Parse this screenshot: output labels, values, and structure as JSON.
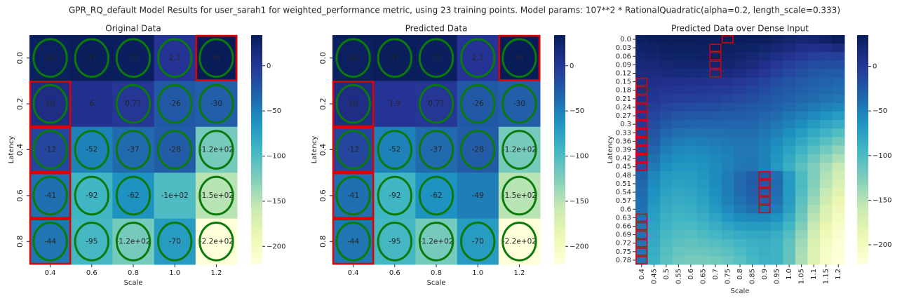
{
  "suptitle": "GPR_RQ_default Model Results for user_sarah1 for weighted_performance metric, using 23 training points. Model params: 107**2 * RationalQuadratic(alpha=0.2, length_scale=0.333)",
  "chart_data": [
    {
      "type": "heatmap",
      "title": "Original Data",
      "x_label": "Scale",
      "y_label": "Latency",
      "colormap": "YlGnBu",
      "mark_row_max": true,
      "x_categories": [
        "0.4",
        "0.6",
        "0.8",
        "1.0",
        "1.2"
      ],
      "y_categories": [
        "0.0",
        "0.2",
        "0.4",
        "0.6",
        "0.8"
      ],
      "values": [
        [
          30,
          33,
          31,
          2.1,
          34
        ],
        [
          10,
          6,
          0.77,
          -26,
          -30
        ],
        [
          -12,
          -52,
          -37,
          -28,
          -120
        ],
        [
          -41,
          -92,
          -62,
          -100,
          -150
        ],
        [
          -44,
          -95,
          -120,
          -70,
          -220
        ]
      ],
      "value_labels": [
        [
          "30",
          "33",
          "31",
          "2.1",
          "34"
        ],
        [
          "10",
          "6",
          "0.77",
          "-26",
          "-30"
        ],
        [
          "-12",
          "-52",
          "-37",
          "-28",
          "-1.2e+02"
        ],
        [
          "-41",
          "-92",
          "-62",
          "-1e+02",
          "-1.5e+02"
        ],
        [
          "-44",
          "-95",
          "-1.2e+02",
          "-70",
          "-2.2e+02"
        ]
      ],
      "circled": [
        [
          true,
          true,
          true,
          true,
          true
        ],
        [
          true,
          false,
          true,
          true,
          true
        ],
        [
          true,
          true,
          true,
          true,
          true
        ],
        [
          true,
          true,
          true,
          false,
          true
        ],
        [
          true,
          true,
          true,
          true,
          true
        ]
      ],
      "clim": [
        -220,
        34
      ],
      "cticks": [
        0,
        {
          "value": -50,
          "label": "−50"
        },
        {
          "value": -100,
          "label": "−100"
        },
        {
          "value": -150,
          "label": "−150"
        },
        {
          "value": -200,
          "label": "−200"
        }
      ]
    },
    {
      "type": "heatmap",
      "title": "Predicted Data",
      "x_label": "Scale",
      "y_label": "Latency",
      "colormap": "YlGnBu",
      "mark_row_max": true,
      "x_categories": [
        "0.4",
        "0.6",
        "0.8",
        "1.0",
        "1.2"
      ],
      "y_categories": [
        "0.0",
        "0.2",
        "0.4",
        "0.6",
        "0.8"
      ],
      "values": [
        [
          30,
          33,
          31,
          2.1,
          34
        ],
        [
          10,
          1.9,
          0.77,
          -26,
          -30
        ],
        [
          -12,
          -52,
          -37,
          -28,
          -120
        ],
        [
          -41,
          -92,
          -62,
          -49,
          -150
        ],
        [
          -44,
          -95,
          -120,
          -70,
          -220
        ]
      ],
      "value_labels": [
        [
          "30",
          "33",
          "31",
          "2.1",
          "34"
        ],
        [
          "10",
          "1.9",
          "0.77",
          "-26",
          "-30"
        ],
        [
          "-12",
          "-52",
          "-37",
          "-28",
          "-1.2e+02"
        ],
        [
          "-41",
          "-92",
          "-62",
          "-49",
          "-1.5e+02"
        ],
        [
          "-44",
          "-95",
          "-1.2e+02",
          "-70",
          "-2.2e+02"
        ]
      ],
      "circled": [
        [
          true,
          true,
          true,
          true,
          true
        ],
        [
          true,
          false,
          true,
          true,
          true
        ],
        [
          true,
          true,
          true,
          true,
          true
        ],
        [
          true,
          true,
          true,
          false,
          true
        ],
        [
          true,
          true,
          true,
          true,
          true
        ]
      ],
      "clim": [
        -220,
        34
      ],
      "cticks": [
        0,
        {
          "value": -50,
          "label": "−50"
        },
        {
          "value": -100,
          "label": "−100"
        },
        {
          "value": -150,
          "label": "−150"
        },
        {
          "value": -200,
          "label": "−200"
        }
      ]
    },
    {
      "type": "heatmap",
      "title": "Predicted Data over Dense Input",
      "x_label": "Scale",
      "y_label": "Latency",
      "colormap": "YlGnBu",
      "mark_row_max": true,
      "x_categories": [
        "0.4",
        "0.45",
        "0.5",
        "0.55",
        "0.6",
        "0.65",
        "0.7",
        "0.75",
        "0.8",
        "0.85",
        "0.9",
        "0.95",
        "1.0",
        "1.05",
        "1.1",
        "1.15",
        "1.2"
      ],
      "y_categories": [
        "0.0",
        "0.03",
        "0.06",
        "0.09",
        "0.12",
        "0.15",
        "0.18",
        "0.21",
        "0.24",
        "0.27",
        "0.3",
        "0.33",
        "0.36",
        "0.39",
        "0.42",
        "0.45",
        "0.48",
        "0.51",
        "0.54",
        "0.57",
        "0.6",
        "0.63",
        "0.66",
        "0.69",
        "0.72",
        "0.75",
        "0.78"
      ],
      "values": [
        [
          30,
          32,
          33,
          33,
          33,
          32,
          32,
          35,
          34,
          32,
          31,
          28,
          24,
          20,
          22,
          28,
          33
        ],
        [
          26,
          28,
          30,
          30,
          30,
          30,
          32,
          31,
          29,
          27,
          24,
          20,
          15,
          10,
          8,
          10,
          14
        ],
        [
          22,
          24,
          26,
          27,
          27,
          28,
          29,
          27,
          24,
          20,
          16,
          10,
          4,
          -2,
          -6,
          -8,
          -6
        ],
        [
          18,
          19,
          21,
          22,
          22,
          23,
          24,
          22,
          19,
          14,
          8,
          1,
          -6,
          -12,
          -16,
          -18,
          -18
        ],
        [
          14,
          14,
          15,
          16,
          16,
          16,
          17,
          15,
          12,
          7,
          1,
          -6,
          -13,
          -19,
          -23,
          -26,
          -27
        ],
        [
          12,
          10,
          8,
          8,
          7,
          7,
          6,
          4,
          1,
          -3,
          -9,
          -15,
          -21,
          -26,
          -30,
          -32,
          -34
        ],
        [
          10,
          6,
          3,
          2,
          1,
          0,
          -1,
          -3,
          -6,
          -10,
          -15,
          -21,
          -26,
          -30,
          -33,
          -36,
          -38
        ],
        [
          8,
          2,
          -3,
          -5,
          -6,
          -7,
          -8,
          -10,
          -13,
          -17,
          -21,
          -26,
          -31,
          -35,
          -38,
          -42,
          -45
        ],
        [
          5,
          -4,
          -10,
          -13,
          -15,
          -16,
          -17,
          -19,
          -21,
          -24,
          -28,
          -32,
          -37,
          -41,
          -46,
          -51,
          -56
        ],
        [
          2,
          -10,
          -18,
          -22,
          -24,
          -25,
          -26,
          -27,
          -28,
          -30,
          -34,
          -38,
          -44,
          -50,
          -57,
          -64,
          -70
        ],
        [
          -1,
          -16,
          -26,
          -31,
          -33,
          -34,
          -34,
          -34,
          -34,
          -35,
          -39,
          -45,
          -52,
          -60,
          -69,
          -78,
          -86
        ],
        [
          -4,
          -22,
          -34,
          -40,
          -42,
          -42,
          -41,
          -40,
          -39,
          -39,
          -44,
          -51,
          -60,
          -70,
          -81,
          -92,
          -102
        ],
        [
          -7,
          -28,
          -42,
          -48,
          -50,
          -49,
          -47,
          -45,
          -43,
          -43,
          -48,
          -57,
          -68,
          -80,
          -93,
          -106,
          -118
        ],
        [
          -9,
          -34,
          -49,
          -55,
          -57,
          -55,
          -52,
          -49,
          -45,
          -45,
          -51,
          -62,
          -75,
          -90,
          -105,
          -120,
          -133
        ],
        [
          -12,
          -40,
          -55,
          -61,
          -62,
          -60,
          -56,
          -51,
          -46,
          -45,
          -52,
          -66,
          -82,
          -99,
          -116,
          -132,
          -146
        ],
        [
          -18,
          -46,
          -61,
          -67,
          -67,
          -64,
          -58,
          -52,
          -45,
          -43,
          -52,
          -68,
          -87,
          -107,
          -126,
          -143,
          -158
        ],
        [
          -30,
          -55,
          -68,
          -72,
          -71,
          -66,
          -58,
          -48,
          -38,
          -30,
          -24,
          -40,
          -70,
          -100,
          -126,
          -148,
          -166
        ],
        [
          -35,
          -58,
          -72,
          -76,
          -74,
          -68,
          -59,
          -48,
          -37,
          -29,
          -25,
          -38,
          -68,
          -100,
          -128,
          -152,
          -172
        ],
        [
          -38,
          -62,
          -76,
          -80,
          -78,
          -71,
          -61,
          -49,
          -38,
          -30,
          -27,
          -39,
          -68,
          -102,
          -132,
          -158,
          -180
        ],
        [
          -40,
          -66,
          -80,
          -84,
          -82,
          -75,
          -64,
          -52,
          -41,
          -33,
          -30,
          -42,
          -70,
          -106,
          -138,
          -165,
          -188
        ],
        [
          -41,
          -70,
          -84,
          -88,
          -86,
          -79,
          -68,
          -57,
          -47,
          -40,
          -38,
          -49,
          -74,
          -112,
          -146,
          -174,
          -196
        ],
        [
          -42,
          -74,
          -88,
          -93,
          -92,
          -86,
          -77,
          -67,
          -59,
          -55,
          -55,
          -62,
          -84,
          -118,
          -152,
          -180,
          -202
        ],
        [
          -43,
          -77,
          -92,
          -98,
          -98,
          -93,
          -86,
          -78,
          -72,
          -69,
          -69,
          -75,
          -94,
          -126,
          -160,
          -188,
          -208
        ],
        [
          -43,
          -80,
          -96,
          -103,
          -104,
          -100,
          -95,
          -89,
          -84,
          -81,
          -80,
          -86,
          -104,
          -134,
          -168,
          -196,
          -214
        ],
        [
          -44,
          -83,
          -100,
          -108,
          -110,
          -108,
          -104,
          -99,
          -94,
          -89,
          -86,
          -91,
          -110,
          -140,
          -174,
          -202,
          -218
        ],
        [
          -44,
          -86,
          -104,
          -113,
          -116,
          -115,
          -112,
          -107,
          -100,
          -93,
          -88,
          -92,
          -112,
          -144,
          -178,
          -206,
          -220
        ],
        [
          -44,
          -89,
          -108,
          -118,
          -122,
          -122,
          -120,
          -114,
          -106,
          -96,
          -90,
          -92,
          -112,
          -146,
          -180,
          -208,
          -222
        ]
      ],
      "clim": [
        -222,
        35
      ],
      "cticks": [
        0,
        {
          "value": -50,
          "label": "−50"
        },
        {
          "value": -100,
          "label": "−100"
        },
        {
          "value": -150,
          "label": "−150"
        },
        {
          "value": -200,
          "label": "−200"
        }
      ]
    }
  ]
}
